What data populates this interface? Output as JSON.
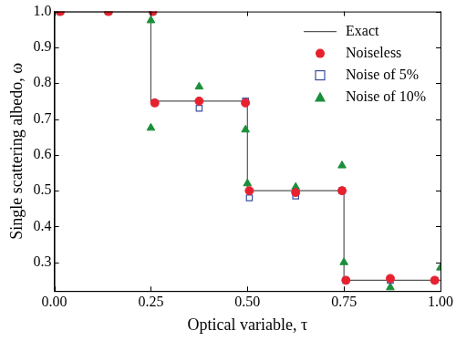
{
  "chart_data": {
    "type": "scatter",
    "x_label": "Optical variable, τ",
    "y_label": "Single scattering albedo, ω",
    "xlim": [
      0,
      1
    ],
    "ylim": [
      0.22,
      1.0
    ],
    "xticks": [
      {
        "value": 0,
        "label": "0.00"
      },
      {
        "value": 0.25,
        "label": "0.25"
      },
      {
        "value": 0.5,
        "label": "0.50"
      },
      {
        "value": 0.75,
        "label": "0.75"
      },
      {
        "value": 1,
        "label": "1.00"
      }
    ],
    "yticks": [
      0.3,
      0.4,
      0.5,
      0.6,
      0.7,
      0.8,
      0.9,
      {
        "value": 1.0,
        "label": "1.0"
      }
    ],
    "grid": false,
    "legend": "upper right",
    "series": [
      {
        "name": "Exact",
        "type": "line",
        "color": "#555555",
        "marker": "none",
        "line_style": "solid",
        "x": [
          0,
          0.25,
          0.25,
          0.5,
          0.5,
          0.75,
          0.75,
          1
        ],
        "values": [
          1.0,
          1.0,
          0.75,
          0.75,
          0.5,
          0.5,
          0.25,
          0.25
        ]
      },
      {
        "name": "Noiseless",
        "type": "scatter",
        "color": "#e8212f",
        "marker": "circle",
        "x": [
          0.015,
          0.14,
          0.255,
          0.26,
          0.375,
          0.495,
          0.505,
          0.625,
          0.745,
          0.755,
          0.87,
          0.985
        ],
        "values": [
          1.0,
          1.0,
          1.0,
          0.745,
          0.75,
          0.745,
          0.5,
          0.495,
          0.5,
          0.25,
          0.255,
          0.25
        ]
      },
      {
        "name": "Noise of 5%",
        "type": "scatter",
        "color": "#3b4fa0",
        "marker": "open_square",
        "x": [
          0.015,
          0.14,
          0.255,
          0.26,
          0.375,
          0.495,
          0.505,
          0.625,
          0.745,
          0.755,
          0.87,
          0.985
        ],
        "values": [
          1.0,
          1.0,
          1.0,
          0.745,
          0.73,
          0.75,
          0.48,
          0.485,
          0.5,
          0.25,
          0.25,
          0.25
        ]
      },
      {
        "name": "Noise of 10%",
        "type": "scatter",
        "color": "#1a8f3a",
        "marker": "triangle",
        "x": [
          0.015,
          0.14,
          0.25,
          0.25,
          0.375,
          0.495,
          0.5,
          0.625,
          0.745,
          0.75,
          0.87,
          1.0
        ],
        "values": [
          1.0,
          1.0,
          0.975,
          0.675,
          0.79,
          0.67,
          0.52,
          0.51,
          0.57,
          0.3,
          0.23,
          0.285
        ]
      }
    ]
  }
}
